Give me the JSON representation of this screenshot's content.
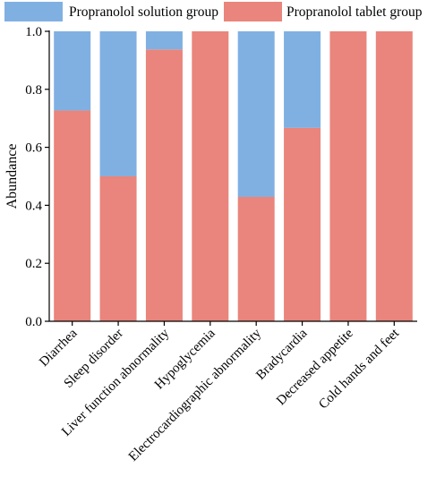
{
  "chart_data": {
    "type": "bar",
    "stacked": true,
    "normalized": true,
    "title": "",
    "xlabel": "",
    "ylabel": "Abundance",
    "ylim": [
      0,
      1.0
    ],
    "yticks": [
      "0.0",
      "0.2",
      "0.4",
      "0.6",
      "0.8",
      "1.0"
    ],
    "categories": [
      "Diarrhea",
      "Sleep disorder",
      "Liver function abnormality",
      "Hypoglycemia",
      "Electrocardiographic abnormality",
      "Bradycardia",
      "Decreased appetite",
      "Cold hands and feet"
    ],
    "series": [
      {
        "name": "Propranolol tablet group",
        "color": "#e9857c",
        "values": [
          0.727,
          0.5,
          0.9375,
          1.0,
          0.429,
          0.667,
          1.0,
          1.0
        ]
      },
      {
        "name": "Propranolol solution group",
        "color": "#80b0e2",
        "values": [
          0.273,
          0.5,
          0.0625,
          0.0,
          0.571,
          0.333,
          0.0,
          0.0
        ]
      }
    ],
    "legend_position": "top",
    "legend_order": [
      "Propranolol solution group",
      "Propranolol tablet group"
    ],
    "grid": false
  }
}
